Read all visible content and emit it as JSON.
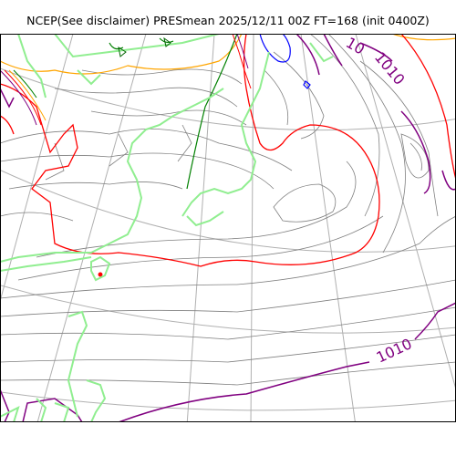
{
  "title": "NCEP(See disclaimer) PRESmean 2025/12/11 00Z FT=168 (init 0400Z)",
  "contour_labels": {
    "top_right_partial": "10",
    "top_right": "1010",
    "bottom_right": "1010"
  },
  "colors": {
    "coastline": "#90ee90",
    "isobar_default": "#808080",
    "isobar_1010": "#800080",
    "isobar_1000": "#ff0000",
    "isobar_990": "#ffa500",
    "isobar_980": "#008000",
    "isobar_970": "#0000ff",
    "graticule": "#b0b0b0"
  }
}
